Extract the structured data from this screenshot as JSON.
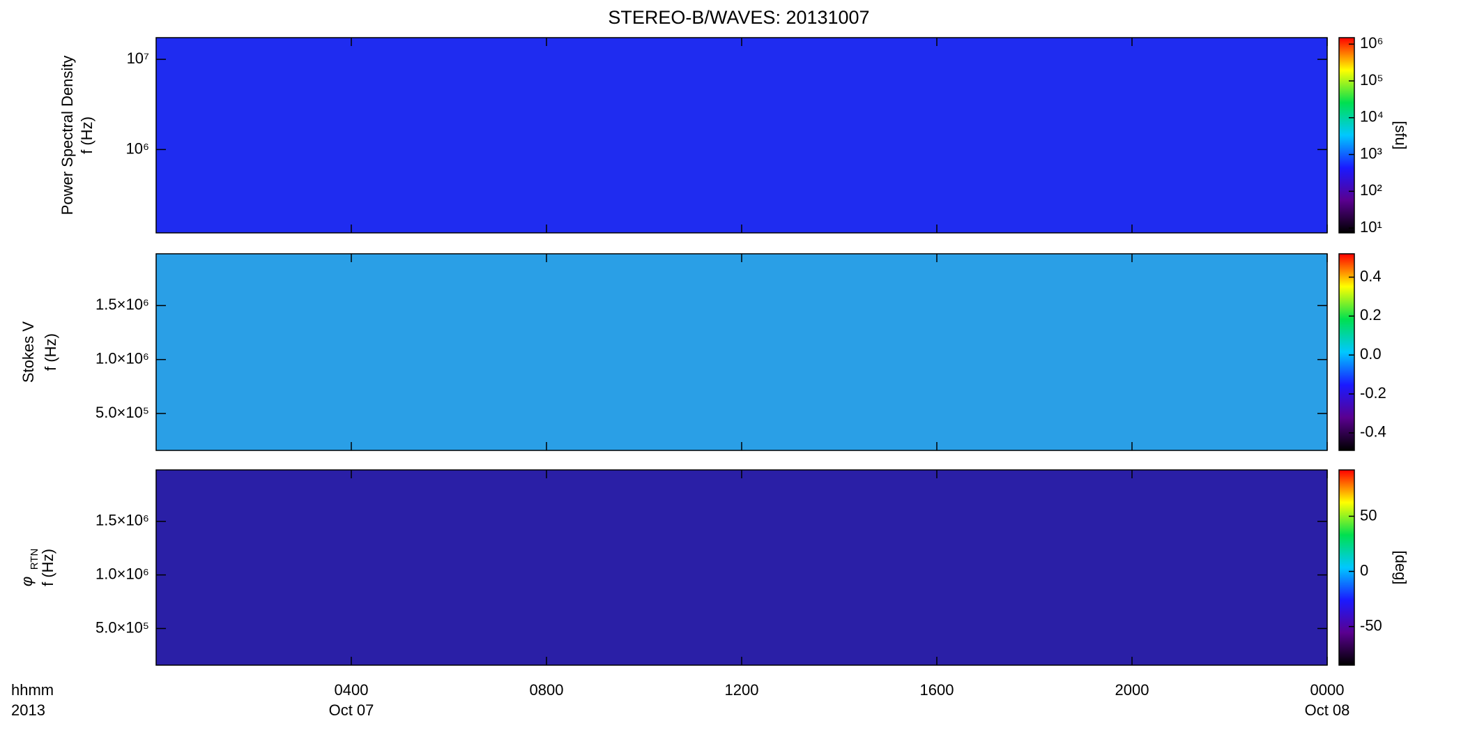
{
  "title": "STEREO-B/WAVES: 20131007",
  "x_axis": {
    "xlim": [
      0,
      24
    ],
    "xticks": [
      {
        "value": 4,
        "label": "0400"
      },
      {
        "value": 8,
        "label": "0800"
      },
      {
        "value": 12,
        "label": "1200"
      },
      {
        "value": 16,
        "label": "1600"
      },
      {
        "value": 20,
        "label": "2000"
      },
      {
        "value": 24,
        "label": "0000"
      }
    ],
    "date_labels": [
      {
        "value": 4,
        "label": "Oct 07"
      },
      {
        "value": 24,
        "label": "Oct 08"
      }
    ],
    "unit_label": "hhmm",
    "year_label": "2013"
  },
  "chart_data": [
    {
      "type": "spectrogram",
      "ylabel": "Power Spectral Density",
      "ylabel_unit": "f (Hz)",
      "ylog": true,
      "ylim": [
        119000,
        17400000
      ],
      "yticks": [
        {
          "value": 1000000,
          "label": "10⁶"
        },
        {
          "value": 10000000,
          "label": "10⁷"
        }
      ],
      "background": "#1f2cf0",
      "colorbar": {
        "log": true,
        "lim": [
          7.4,
          1500000
        ],
        "label": "[sfu]",
        "colors": [
          "#000000",
          "#5a0090",
          "#1a1aff",
          "#00c8ff",
          "#00e050",
          "#ffff00",
          "#ff0000"
        ],
        "ticks": [
          {
            "value": 10,
            "label": "10¹"
          },
          {
            "value": 100,
            "label": "10²"
          },
          {
            "value": 1000,
            "label": "10³"
          },
          {
            "value": 10000,
            "label": "10⁴"
          },
          {
            "value": 100000,
            "label": "10⁵"
          },
          {
            "value": 1000000,
            "label": "10⁶"
          }
        ]
      }
    },
    {
      "type": "spectrogram",
      "ylabel": "Stokes V",
      "ylabel_unit": "f (Hz)",
      "ylog": false,
      "ylim": [
        158000,
        1980000
      ],
      "yticks": [
        {
          "value": 500000,
          "label": "5.0×10⁵"
        },
        {
          "value": 1000000,
          "label": "1.0×10⁶"
        },
        {
          "value": 1500000,
          "label": "1.5×10⁶"
        }
      ],
      "background": "#2a9fe6",
      "colorbar": {
        "log": false,
        "lim": [
          -0.49,
          0.52
        ],
        "label": null,
        "colors": [
          "#000000",
          "#5a0090",
          "#1a1aff",
          "#00c8ff",
          "#00e050",
          "#ffff00",
          "#ff0000"
        ],
        "ticks": [
          -0.4,
          -0.2,
          {
            "value": 0,
            "label": "0.0"
          },
          0.2,
          0.4
        ]
      }
    },
    {
      "type": "spectrogram",
      "ylabel": "φ",
      "ylabel_sub": "RTN",
      "ylabel_unit": "f (Hz)",
      "ylog": false,
      "ylim": [
        158000,
        1980000
      ],
      "yticks": [
        {
          "value": 500000,
          "label": "5.0×10⁵"
        },
        {
          "value": 1000000,
          "label": "1.0×10⁶"
        },
        {
          "value": 1500000,
          "label": "1.5×10⁶"
        }
      ],
      "background": "#2a1fa6",
      "colorbar": {
        "log": false,
        "lim": [
          -85,
          92
        ],
        "label": "[deg]",
        "colors": [
          "#000000",
          "#5a0090",
          "#1a1aff",
          "#00c8ff",
          "#00e050",
          "#ffff00",
          "#ff0000"
        ],
        "ticks": [
          -50,
          0,
          50
        ]
      }
    }
  ]
}
